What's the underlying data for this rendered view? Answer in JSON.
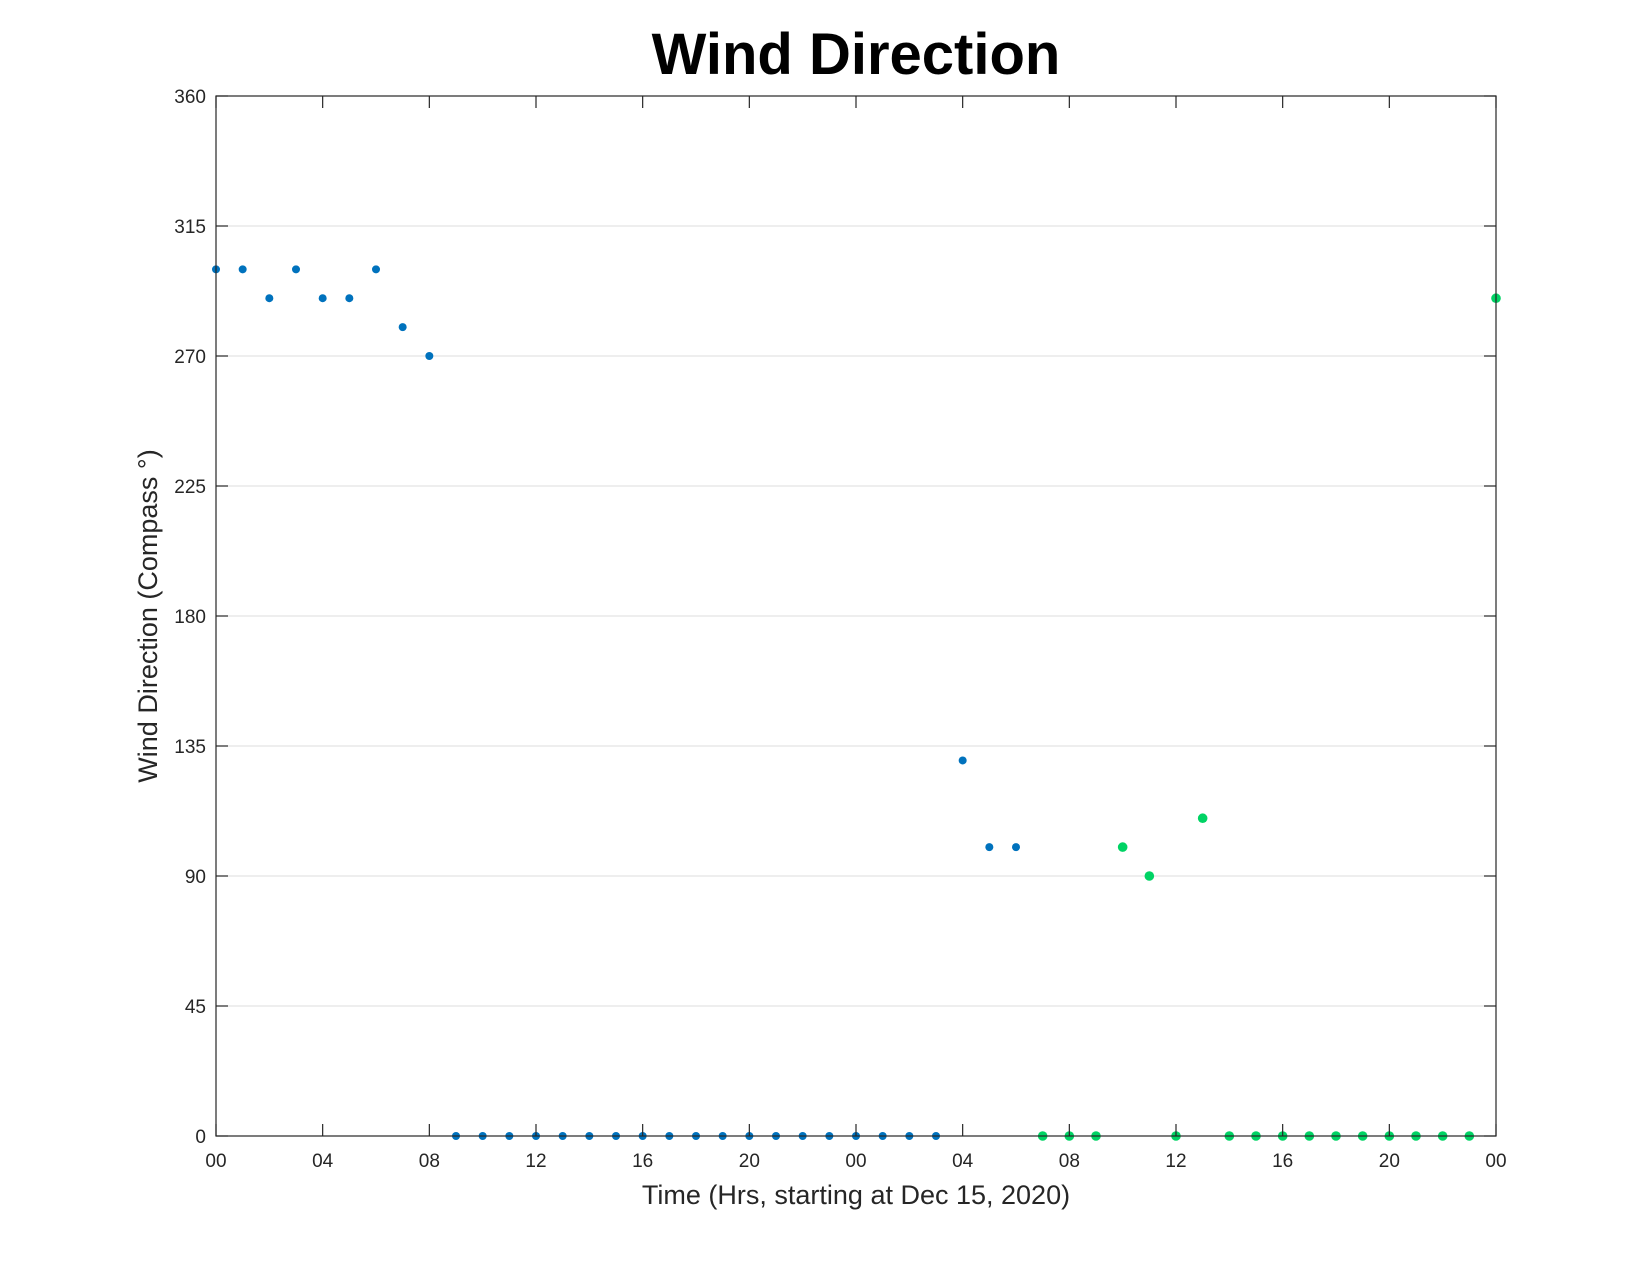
{
  "chart_data": {
    "type": "scatter",
    "title": "Wind Direction",
    "xlabel": "Time (Hrs, starting at Dec 15, 2020)",
    "ylabel": "Wind Direction (Compass °)",
    "x_unit": "hours",
    "xlim": [
      0,
      48
    ],
    "ylim": [
      0,
      360
    ],
    "yticks": [
      0,
      45,
      90,
      135,
      180,
      225,
      270,
      315,
      360
    ],
    "xtick_labels": [
      "00",
      "04",
      "08",
      "12",
      "16",
      "20",
      "00",
      "04",
      "08",
      "12",
      "16",
      "20",
      "00"
    ],
    "xtick_values": [
      0,
      4,
      8,
      12,
      16,
      20,
      24,
      28,
      32,
      36,
      40,
      44,
      48
    ],
    "grid": true,
    "colors": {
      "series1": "#0072bd",
      "series2": "#00d364"
    },
    "series": [
      {
        "x": [
          0,
          1,
          2,
          3,
          4,
          5,
          6,
          7,
          8,
          9,
          10,
          11,
          12,
          13,
          14,
          15,
          16,
          17,
          18,
          19,
          20,
          21,
          22,
          23,
          24,
          25,
          26,
          27,
          28,
          29,
          30
        ],
        "y": [
          300,
          300,
          290,
          300,
          290,
          290,
          300,
          280,
          270,
          0,
          0,
          0,
          0,
          0,
          0,
          0,
          0,
          0,
          0,
          0,
          0,
          0,
          0,
          0,
          0,
          0,
          0,
          0,
          130,
          100,
          100
        ]
      },
      {
        "x": [
          31,
          32,
          33,
          34,
          35,
          36,
          37,
          38,
          39,
          40,
          41,
          42,
          43,
          44,
          45,
          46,
          47,
          48
        ],
        "y": [
          0,
          0,
          0,
          100,
          90,
          0,
          110,
          0,
          0,
          0,
          0,
          0,
          0,
          0,
          0,
          0,
          0,
          290
        ]
      }
    ]
  }
}
